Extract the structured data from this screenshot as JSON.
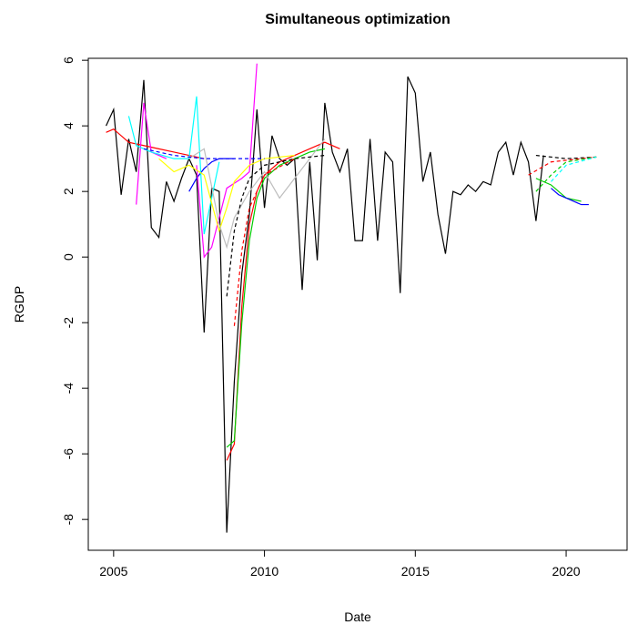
{
  "chart_data": {
    "type": "line",
    "title": "Simultaneous optimization",
    "x_label": "Date",
    "y_label": "RGDP",
    "xlim": [
      2004.16,
      2022.02
    ],
    "ylim": [
      -8.94,
      6.06
    ],
    "xticks": [
      2005,
      2010,
      2015,
      2020
    ],
    "yticks": [
      -8,
      -6,
      -4,
      -2,
      0,
      2,
      4,
      6
    ],
    "series": [
      {
        "color": "#000000",
        "dashed": false,
        "x": [
          2004.75,
          2005,
          2005.25,
          2005.5,
          2005.75,
          2006,
          2006.25,
          2006.5,
          2006.75,
          2007,
          2007.25,
          2007.5,
          2007.75,
          2008,
          2008.25,
          2008.5,
          2008.75,
          2009,
          2009.25,
          2009.5,
          2009.75,
          2010,
          2010.25,
          2010.5,
          2010.75,
          2011,
          2011.25,
          2011.5,
          2011.75,
          2012,
          2012.25,
          2012.5,
          2012.75,
          2013,
          2013.25,
          2013.5,
          2013.75,
          2014,
          2014.25,
          2014.5,
          2014.75,
          2015,
          2015.25,
          2015.5,
          2015.75,
          2016,
          2016.25,
          2016.5,
          2016.75,
          2017,
          2017.25,
          2017.5,
          2017.75,
          2018,
          2018.25,
          2018.5,
          2018.75,
          2019,
          2019.25
        ],
        "values": [
          4.0,
          4.5,
          1.9,
          3.6,
          2.6,
          5.4,
          0.9,
          0.6,
          2.3,
          1.7,
          2.4,
          3.0,
          2.5,
          -2.3,
          2.1,
          2.0,
          -8.4,
          -3.8,
          -0.5,
          1.3,
          4.5,
          1.5,
          3.7,
          3.0,
          2.8,
          3.0,
          -1.0,
          2.9,
          -0.1,
          4.7,
          3.2,
          2.6,
          3.3,
          0.5,
          0.5,
          3.6,
          0.5,
          3.2,
          2.9,
          -1.1,
          5.5,
          5.0,
          2.3,
          3.2,
          1.3,
          0.1,
          2.0,
          1.9,
          2.2,
          2.0,
          2.3,
          2.2,
          3.2,
          3.5,
          2.5,
          3.5,
          2.9,
          1.1,
          3.1
        ]
      },
      {
        "color": "#ff0000",
        "dashed": false,
        "x": [
          2004.75,
          2005,
          2005.5,
          2006,
          2006.5,
          2007,
          2007.5,
          2008
        ],
        "values": [
          3.8,
          3.9,
          3.5,
          3.4,
          3.3,
          3.2,
          3.1,
          3.0
        ]
      },
      {
        "color": "#ff0000",
        "dashed": false,
        "x": [
          2008.75,
          2009,
          2009.25,
          2009.5,
          2009.75,
          2010,
          2010.5,
          2011,
          2011.5,
          2012,
          2012.5
        ],
        "values": [
          -6.2,
          -5.7,
          -1.5,
          1.0,
          2.0,
          2.5,
          2.9,
          3.1,
          3.3,
          3.5,
          3.3
        ]
      },
      {
        "color": "#00cd00",
        "dashed": false,
        "x": [
          2008.75,
          2009,
          2009.25,
          2009.5,
          2009.75,
          2010,
          2010.5,
          2011,
          2011.5,
          2012
        ],
        "values": [
          -5.8,
          -5.6,
          -2.0,
          0.5,
          1.8,
          2.4,
          2.8,
          3.0,
          3.2,
          3.3
        ]
      },
      {
        "color": "#00cd00",
        "dashed": false,
        "x": [
          2019,
          2019.5,
          2020,
          2020.5
        ],
        "values": [
          2.4,
          2.2,
          1.8,
          1.7
        ]
      },
      {
        "color": "#0000ff",
        "dashed": false,
        "x": [
          2007.5,
          2007.75,
          2008,
          2008.25,
          2008.5,
          2008.75,
          2009
        ],
        "values": [
          2.0,
          2.4,
          2.7,
          2.9,
          3.0,
          3.0,
          3.0
        ]
      },
      {
        "color": "#0000ff",
        "dashed": false,
        "x": [
          2019.5,
          2019.75,
          2020,
          2020.25,
          2020.5,
          2020.75
        ],
        "values": [
          2.1,
          1.9,
          1.8,
          1.7,
          1.6,
          1.6
        ]
      },
      {
        "color": "#ff00ff",
        "dashed": false,
        "x": [
          2005.75,
          2006,
          2006.25,
          2006.75
        ],
        "values": [
          1.6,
          4.7,
          3.2,
          3.0
        ]
      },
      {
        "color": "#ff00ff",
        "dashed": false,
        "x": [
          2007.75,
          2008,
          2008.25,
          2008.75,
          2009.25,
          2009.5,
          2009.75
        ],
        "values": [
          2.8,
          0.0,
          0.3,
          2.1,
          2.4,
          2.6,
          5.9
        ]
      },
      {
        "color": "#00ffff",
        "dashed": false,
        "x": [
          2005.5,
          2005.75,
          2006.25,
          2007,
          2007.5,
          2007.75,
          2008,
          2008.5
        ],
        "values": [
          4.3,
          3.4,
          3.2,
          3.0,
          3.0,
          4.9,
          0.7,
          2.9
        ]
      },
      {
        "color": "#ffff00",
        "dashed": false,
        "x": [
          2006.5,
          2007,
          2007.5,
          2008,
          2008.5,
          2008.75,
          2009,
          2009.5,
          2010,
          2011
        ],
        "values": [
          3.0,
          2.6,
          2.8,
          2.5,
          0.8,
          1.5,
          2.3,
          2.8,
          3.0,
          3.1
        ]
      },
      {
        "color": "#bebebe",
        "dashed": false,
        "x": [
          2007.5,
          2008,
          2008.5,
          2008.75,
          2009,
          2009.5,
          2010,
          2010.5,
          2011,
          2012
        ],
        "values": [
          3.0,
          3.3,
          1.0,
          0.3,
          1.2,
          2.0,
          2.6,
          1.8,
          2.4,
          3.6
        ]
      },
      {
        "color": "#000000",
        "dashed": true,
        "x": [
          2008.75,
          2009,
          2009.25,
          2009.5,
          2010,
          2011,
          2012
        ],
        "values": [
          -1.2,
          0.8,
          1.8,
          2.4,
          2.8,
          3.0,
          3.1
        ]
      },
      {
        "color": "#000000",
        "dashed": true,
        "x": [
          2019,
          2020,
          2021
        ],
        "values": [
          3.1,
          3.0,
          3.05
        ]
      },
      {
        "color": "#ff0000",
        "dashed": true,
        "x": [
          2009,
          2009.25,
          2009.5,
          2010,
          2011
        ],
        "values": [
          -2.1,
          0.2,
          1.5,
          2.5,
          3.0
        ]
      },
      {
        "color": "#ff0000",
        "dashed": true,
        "x": [
          2018.75,
          2019.5,
          2020.5,
          2021
        ],
        "values": [
          2.5,
          2.9,
          3.0,
          3.05
        ]
      },
      {
        "color": "#00cd00",
        "dashed": true,
        "x": [
          2019,
          2019.5,
          2020,
          2021
        ],
        "values": [
          2.0,
          2.5,
          2.9,
          3.05
        ]
      },
      {
        "color": "#0000ff",
        "dashed": true,
        "x": [
          2006,
          2007,
          2008,
          2009,
          2010
        ],
        "values": [
          3.3,
          3.1,
          3.0,
          3.0,
          3.0
        ]
      },
      {
        "color": "#00ffff",
        "dashed": true,
        "x": [
          2019.5,
          2020,
          2021
        ],
        "values": [
          2.3,
          2.8,
          3.05
        ]
      }
    ]
  }
}
